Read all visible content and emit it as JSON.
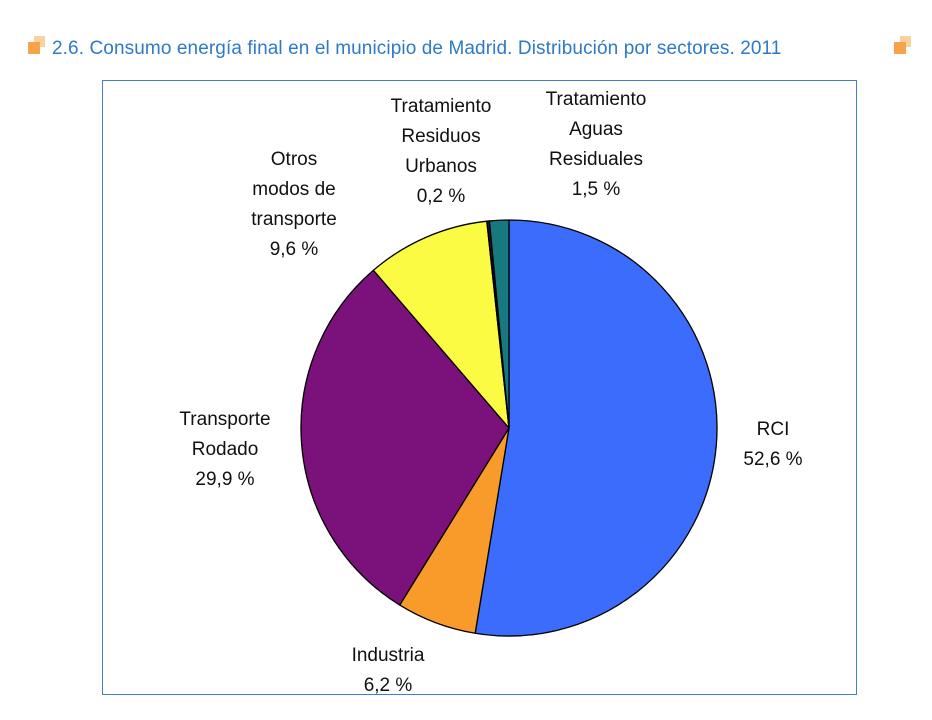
{
  "header": {
    "title": "2.6. Consumo energía final en el municipio de Madrid. Distribución por sectores. 2011"
  },
  "colors": {
    "title": "#2f79c9",
    "frame": "#3d7fd0",
    "bullet_dark": "#f7a34a",
    "bullet_light": "#fbd29e"
  },
  "chart_data": {
    "type": "pie",
    "title": "2.6. Consumo energía final en el municipio de Madrid. Distribución por sectores. 2011",
    "start_angle_deg": 0,
    "direction": "clockwise",
    "slices": [
      {
        "label_lines": [
          "RCI"
        ],
        "value": 52.6,
        "value_label": "52,6 %",
        "color": "#3b6cfb"
      },
      {
        "label_lines": [
          "Industria"
        ],
        "value": 6.2,
        "value_label": "6,2 %",
        "color": "#f99b2a"
      },
      {
        "label_lines": [
          "Transporte",
          "Rodado"
        ],
        "value": 29.9,
        "value_label": "29,9 %",
        "color": "#7b117a"
      },
      {
        "label_lines": [
          "Otros",
          "modos de",
          "transporte"
        ],
        "value": 9.6,
        "value_label": "9,6 %",
        "color": "#fbfb43"
      },
      {
        "label_lines": [
          "Tratamiento",
          "Residuos",
          "Urbanos"
        ],
        "value": 0.2,
        "value_label": "0,2 %",
        "color": "#2a0a40"
      },
      {
        "label_lines": [
          "Tratamiento",
          "Aguas",
          "Residuales"
        ],
        "value": 1.5,
        "value_label": "1,5 %",
        "color": "#17797d"
      }
    ]
  }
}
